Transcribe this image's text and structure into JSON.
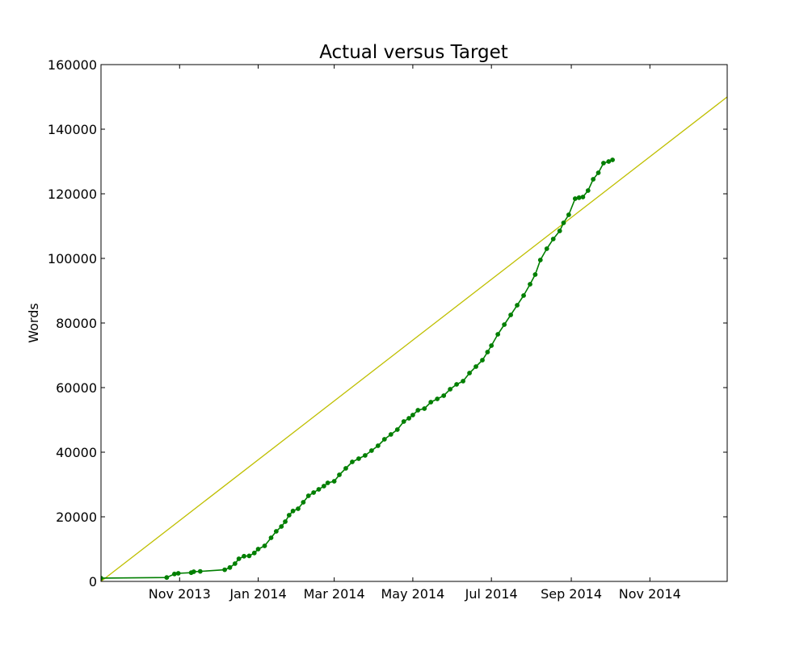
{
  "chart_data": {
    "type": "line",
    "title": "Actual versus Target",
    "xlabel": "",
    "ylabel": "Words",
    "x_axis": {
      "type": "date",
      "range": [
        "2013-09-01",
        "2014-12-31"
      ],
      "ticks": [
        {
          "date": "2013-11-01",
          "label": "Nov 2013"
        },
        {
          "date": "2014-01-01",
          "label": "Jan 2014"
        },
        {
          "date": "2014-03-01",
          "label": "Mar 2014"
        },
        {
          "date": "2014-05-01",
          "label": "May 2014"
        },
        {
          "date": "2014-07-01",
          "label": "Jul 2014"
        },
        {
          "date": "2014-09-01",
          "label": "Sep 2014"
        },
        {
          "date": "2014-11-01",
          "label": "Nov 2014"
        }
      ]
    },
    "y_axis": {
      "range": [
        0,
        160000
      ],
      "ticks": [
        0,
        20000,
        40000,
        60000,
        80000,
        100000,
        120000,
        140000,
        160000
      ]
    },
    "grid": false,
    "series": [
      {
        "color": "#bfbf00",
        "markers": false,
        "x": [
          "2013-09-01",
          "2014-12-31"
        ],
        "y": [
          0,
          150000
        ]
      },
      {
        "color": "#007f00",
        "markers": true,
        "x": [
          "2013-09-01",
          "2013-10-22",
          "2013-10-28",
          "2013-10-31",
          "2013-11-10",
          "2013-11-12",
          "2013-11-17",
          "2013-12-06",
          "2013-12-10",
          "2013-12-14",
          "2013-12-17",
          "2013-12-21",
          "2013-12-25",
          "2013-12-29",
          "2014-01-01",
          "2014-01-06",
          "2014-01-11",
          "2014-01-15",
          "2014-01-19",
          "2014-01-22",
          "2014-01-25",
          "2014-01-28",
          "2014-02-01",
          "2014-02-05",
          "2014-02-09",
          "2014-02-13",
          "2014-02-17",
          "2014-02-21",
          "2014-02-24",
          "2014-03-01",
          "2014-03-05",
          "2014-03-10",
          "2014-03-15",
          "2014-03-20",
          "2014-03-25",
          "2014-03-30",
          "2014-04-04",
          "2014-04-09",
          "2014-04-14",
          "2014-04-19",
          "2014-04-24",
          "2014-04-28",
          "2014-05-01",
          "2014-05-05",
          "2014-05-10",
          "2014-05-15",
          "2014-05-20",
          "2014-05-25",
          "2014-05-30",
          "2014-06-04",
          "2014-06-09",
          "2014-06-14",
          "2014-06-19",
          "2014-06-24",
          "2014-06-28",
          "2014-07-01",
          "2014-07-06",
          "2014-07-11",
          "2014-07-16",
          "2014-07-21",
          "2014-07-26",
          "2014-07-31",
          "2014-08-04",
          "2014-08-08",
          "2014-08-13",
          "2014-08-18",
          "2014-08-23",
          "2014-08-26",
          "2014-08-30",
          "2014-09-04",
          "2014-09-07",
          "2014-09-10",
          "2014-09-14",
          "2014-09-18",
          "2014-09-22",
          "2014-09-26",
          "2014-09-30",
          "2014-10-03"
        ],
        "y": [
          1000,
          1200,
          2300,
          2500,
          2700,
          3000,
          3100,
          3600,
          4300,
          5500,
          7000,
          7800,
          7900,
          8800,
          10000,
          11000,
          13500,
          15500,
          17000,
          18500,
          20500,
          21800,
          22500,
          24500,
          26500,
          27500,
          28500,
          29500,
          30500,
          31000,
          33000,
          35000,
          37000,
          38000,
          39000,
          40500,
          42000,
          44000,
          45500,
          47000,
          49500,
          50500,
          51500,
          53000,
          53500,
          55500,
          56500,
          57500,
          59500,
          61000,
          62000,
          64500,
          66500,
          68500,
          71000,
          73000,
          76500,
          79500,
          82500,
          85500,
          88500,
          92000,
          95000,
          99500,
          103000,
          106000,
          108500,
          111000,
          113500,
          118500,
          118800,
          119000,
          121000,
          124500,
          126500,
          129500,
          130000,
          130500
        ]
      }
    ]
  }
}
